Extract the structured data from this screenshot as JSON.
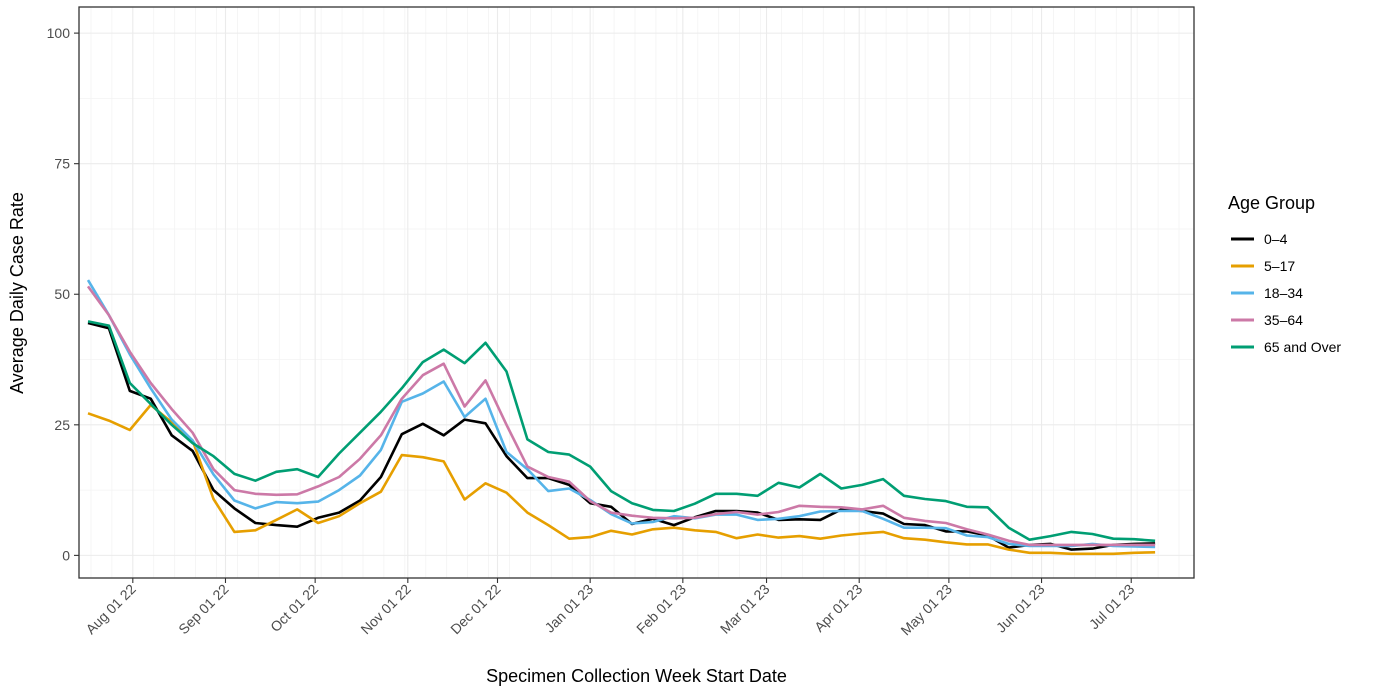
{
  "chart_data": {
    "type": "line",
    "xlabel": "Specimen Collection Week Start Date",
    "ylabel": "Average Daily Case Rate",
    "ylim": [
      0,
      100
    ],
    "yticks": [
      0,
      25,
      50,
      75,
      100
    ],
    "xlim": [
      "2022-07-14",
      "2023-07-22"
    ],
    "xticks": [
      {
        "date": "2022-08-01",
        "label": "Aug 01 22"
      },
      {
        "date": "2022-09-01",
        "label": "Sep 01 22"
      },
      {
        "date": "2022-10-01",
        "label": "Oct 01 22"
      },
      {
        "date": "2022-11-01",
        "label": "Nov 01 22"
      },
      {
        "date": "2022-12-01",
        "label": "Dec 01 22"
      },
      {
        "date": "2023-01-01",
        "label": "Jan 01 23"
      },
      {
        "date": "2023-02-01",
        "label": "Feb 01 23"
      },
      {
        "date": "2023-03-01",
        "label": "Mar 01 23"
      },
      {
        "date": "2023-04-01",
        "label": "Apr 01 23"
      },
      {
        "date": "2023-05-01",
        "label": "May 01 23"
      },
      {
        "date": "2023-06-01",
        "label": "Jun 01 23"
      },
      {
        "date": "2023-07-01",
        "label": "Jul 01 23"
      }
    ],
    "grid": true,
    "legend_position": "right",
    "legend_title": "Age Group",
    "x": [
      "2022-07-17",
      "2022-07-24",
      "2022-07-31",
      "2022-08-07",
      "2022-08-14",
      "2022-08-21",
      "2022-08-28",
      "2022-09-04",
      "2022-09-11",
      "2022-09-18",
      "2022-09-25",
      "2022-10-02",
      "2022-10-09",
      "2022-10-16",
      "2022-10-23",
      "2022-10-30",
      "2022-11-06",
      "2022-11-13",
      "2022-11-20",
      "2022-11-27",
      "2022-12-04",
      "2022-12-11",
      "2022-12-18",
      "2022-12-25",
      "2023-01-01",
      "2023-01-08",
      "2023-01-15",
      "2023-01-22",
      "2023-01-29",
      "2023-02-05",
      "2023-02-12",
      "2023-02-19",
      "2023-02-26",
      "2023-03-05",
      "2023-03-12",
      "2023-03-19",
      "2023-03-26",
      "2023-04-02",
      "2023-04-09",
      "2023-04-16",
      "2023-04-23",
      "2023-04-30",
      "2023-05-07",
      "2023-05-14",
      "2023-05-21",
      "2023-05-28",
      "2023-06-04",
      "2023-06-11",
      "2023-06-18",
      "2023-06-25",
      "2023-07-02",
      "2023-07-09"
    ],
    "series": [
      {
        "name": "0–4",
        "color": "#000000",
        "values": [
          44.5,
          43.5,
          31.5,
          30,
          23,
          20,
          12.5,
          9,
          6.2,
          5.8,
          5.5,
          7.2,
          8.2,
          10.5,
          15,
          23.2,
          25.2,
          23,
          26,
          25.3,
          19,
          14.8,
          14.8,
          13.5,
          10,
          9.3,
          6,
          7,
          5.8,
          7.3,
          8.5,
          8.5,
          8.2,
          6.8,
          6.9,
          6.8,
          8.8,
          8.5,
          8,
          6,
          5.8,
          4.6,
          4.6,
          3.8,
          1.5,
          2,
          2.2,
          1.1,
          1.3,
          2,
          2.2,
          2.3
        ]
      },
      {
        "name": "5–17",
        "color": "#E69F00",
        "values": [
          27.2,
          25.8,
          24,
          28.8,
          25.5,
          22,
          10.8,
          4.5,
          4.8,
          6.8,
          8.8,
          6.2,
          7.5,
          10,
          12.2,
          19.2,
          18.8,
          18,
          10.7,
          13.8,
          12,
          8.2,
          5.8,
          3.2,
          3.5,
          4.7,
          4,
          5,
          5.3,
          4.8,
          4.5,
          3.3,
          4,
          3.4,
          3.7,
          3.2,
          3.8,
          4.2,
          4.5,
          3.3,
          3,
          2.5,
          2.1,
          2.1,
          1.1,
          0.5,
          0.5,
          0.3,
          0.3,
          0.3,
          0.5,
          0.6
        ]
      },
      {
        "name": "18–34",
        "color": "#56B4E9",
        "values": [
          52.7,
          46,
          38.5,
          32,
          26,
          22,
          15.5,
          10.5,
          9,
          10.2,
          10,
          10.3,
          12.5,
          15.3,
          20.2,
          29.4,
          31,
          33.3,
          26.5,
          30,
          19.8,
          16.5,
          12.3,
          12.8,
          10.6,
          7.9,
          6.1,
          6.4,
          7.5,
          7.1,
          7.8,
          7.8,
          6.8,
          7,
          7.5,
          8.4,
          8.5,
          8.5,
          7,
          5.3,
          5.3,
          5.2,
          3.8,
          3.5,
          2.2,
          1.8,
          1.8,
          1.8,
          2.2,
          1.8,
          1.7,
          1.6
        ]
      },
      {
        "name": "35–64",
        "color": "#CC79A7",
        "values": [
          51.5,
          46,
          39,
          33,
          28,
          23.5,
          16.5,
          12.5,
          11.8,
          11.6,
          11.7,
          13.2,
          15,
          18.5,
          23,
          30,
          34.5,
          36.7,
          28.5,
          33.5,
          25,
          17,
          15,
          14.1,
          10.4,
          8.2,
          7.6,
          7.2,
          7.1,
          7.2,
          7.9,
          8.3,
          7.8,
          8.3,
          9.5,
          9.3,
          9.2,
          8.8,
          9.5,
          7.2,
          6.6,
          6.2,
          5,
          4,
          2.8,
          2,
          2,
          2,
          2,
          2,
          2,
          2
        ]
      },
      {
        "name": "65 and Over",
        "color": "#009E73",
        "values": [
          44.8,
          44,
          33,
          29,
          25,
          21.5,
          19,
          15.6,
          14.3,
          16,
          16.5,
          15,
          19.5,
          23.5,
          27.5,
          32,
          37,
          39.4,
          36.8,
          40.7,
          35.2,
          22.2,
          19.8,
          19.3,
          17,
          12.3,
          10,
          8.7,
          8.5,
          9.9,
          11.8,
          11.8,
          11.4,
          13.9,
          13,
          15.6,
          12.8,
          13.5,
          14.6,
          11.4,
          10.8,
          10.4,
          9.3,
          9.2,
          5.3,
          3,
          3.7,
          4.5,
          4.1,
          3.2,
          3.1,
          2.8
        ]
      }
    ]
  }
}
